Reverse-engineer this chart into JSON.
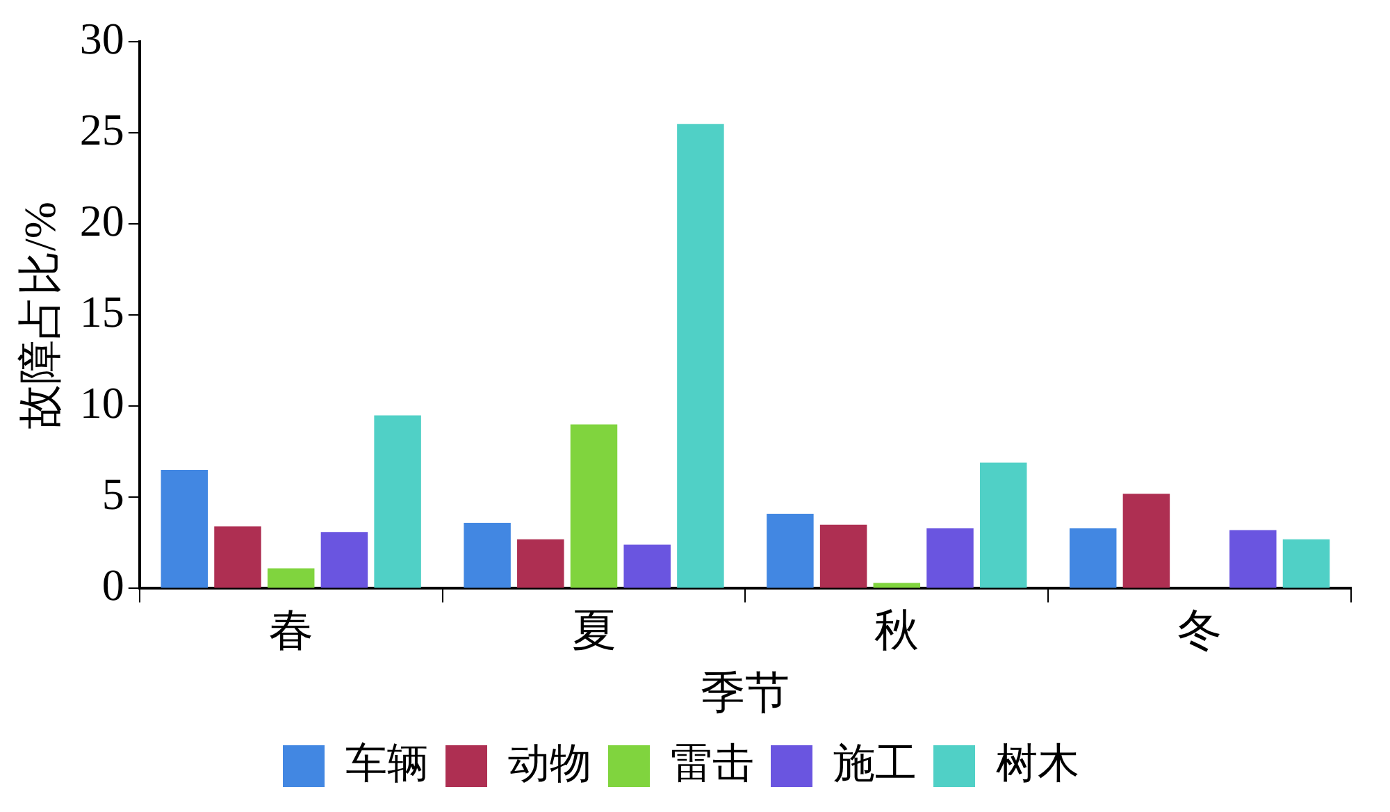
{
  "chart_data": {
    "type": "bar",
    "xlabel": "季节",
    "ylabel": "故障占比/%",
    "categories": [
      "春",
      "夏",
      "秋",
      "冬"
    ],
    "series": [
      {
        "name": "车辆",
        "color": "#4287e2",
        "values": [
          6.5,
          3.6,
          4.1,
          3.3
        ]
      },
      {
        "name": "动物",
        "color": "#ae2f52",
        "values": [
          3.4,
          2.7,
          3.5,
          5.2
        ]
      },
      {
        "name": "雷击",
        "color": "#80d43e",
        "values": [
          1.1,
          9.0,
          0.3,
          0
        ]
      },
      {
        "name": "施工",
        "color": "#6a55e0",
        "values": [
          3.1,
          2.4,
          3.3,
          3.2
        ]
      },
      {
        "name": "树木",
        "color": "#50d0c6",
        "values": [
          9.5,
          25.5,
          6.9,
          2.7
        ]
      }
    ],
    "ylim": [
      0,
      30
    ],
    "yticks": [
      0,
      5,
      10,
      15,
      20,
      25,
      30
    ],
    "grid": false,
    "legend": "bottom"
  }
}
